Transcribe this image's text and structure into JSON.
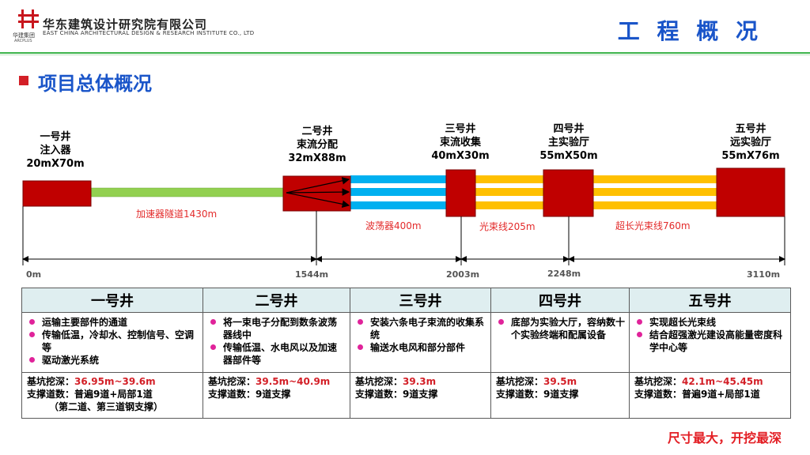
{
  "header": {
    "company_cn": "华东建筑设计研究院有限公司",
    "company_en": "EAST CHINA ARCHITECTURAL DESIGN & RESEARCH INSTITUTE CO., LTD",
    "group_cn": "华建集团",
    "group_en": "ARCPLUS",
    "page_title": "工 程 概 况",
    "section_title": "项目总体概况"
  },
  "colors": {
    "accent_blue": "#1a55c9",
    "shaft_red": "#c00000",
    "linac_green": "#92d050",
    "undulator_blue": "#00b0f0",
    "beamline_yellow": "#ffc000",
    "highlight_red": "#d31f27"
  },
  "diagram": {
    "shafts": [
      {
        "name": "一号井",
        "func": "注入器",
        "size": "20mX70m"
      },
      {
        "name": "二号井",
        "func": "束流分配",
        "size": "32mX88m"
      },
      {
        "name": "三号井",
        "func": "束流收集",
        "size": "40mX30m"
      },
      {
        "name": "四号井",
        "func": "主实验厅",
        "size": "55mX50m"
      },
      {
        "name": "五号井",
        "func": "远实验厅",
        "size": "55mX76m"
      }
    ],
    "segments": [
      "加速器隧道1430m",
      "波荡器400m",
      "光束线205m",
      "超长光束线760m"
    ],
    "distances": [
      "0m",
      "1544m",
      "2003m",
      "2248m",
      "3110m"
    ]
  },
  "table": {
    "columns": [
      {
        "header": "一号井",
        "bullets": [
          "运输主要部件的通道",
          "传输低温，冷却水、控制信号、空调等",
          "驱动激光系统"
        ],
        "depth_label": "基坑挖深：",
        "depth": "36.95m~39.6m",
        "support_label": "支撑道数：",
        "support": "普遍9道+局部1道",
        "support_note": "（第二道、第三道钢支撑）"
      },
      {
        "header": "二号井",
        "bullets": [
          "将一束电子分配到数条波荡器线中",
          "传输低温、水电风以及加速器部件等"
        ],
        "depth_label": "基坑挖深：",
        "depth": "39.5m~40.9m",
        "support_label": "支撑道数：",
        "support": "9道支撑",
        "support_note": ""
      },
      {
        "header": "三号井",
        "bullets": [
          "安装六条电子束流的收集系统",
          "输送水电风和部分部件"
        ],
        "depth_label": "基坑挖深：",
        "depth": "39.3m",
        "support_label": "支撑道数：",
        "support": "9道支撑",
        "support_note": ""
      },
      {
        "header": "四号井",
        "bullets": [
          "底部为实验大厅，容纳数十个实验终端和配属设备"
        ],
        "depth_label": "基坑挖深：",
        "depth": "39.5m",
        "support_label": "支撑道数：",
        "support": "9道支撑",
        "support_note": ""
      },
      {
        "header": "五号井",
        "bullets": [
          "实现超长光束线",
          "结合超强激光建设高能量密度科学中心等"
        ],
        "depth_label": "基坑挖深：",
        "depth": "42.1m~45.45m",
        "support_label": "支撑道数：",
        "support": "普遍9道+局部1道",
        "support_note": ""
      }
    ]
  },
  "conclusion": "尺寸最大，开挖最深"
}
